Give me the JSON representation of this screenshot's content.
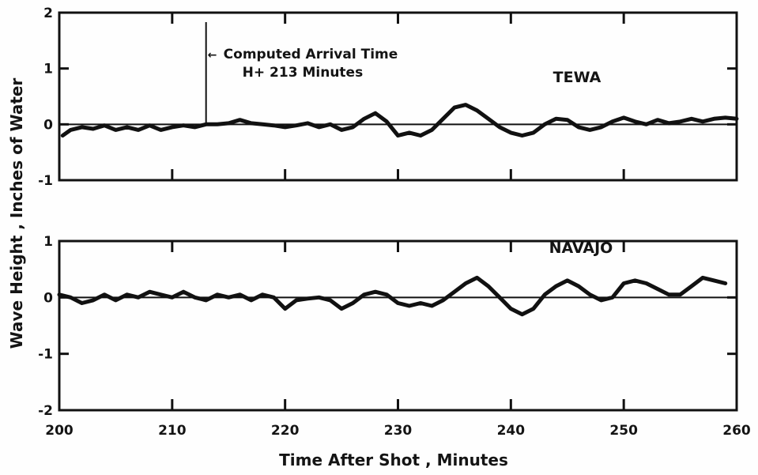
{
  "chart_data": {
    "type": "line",
    "xlabel": "Time After Shot , Minutes",
    "ylabel": "Wave Height ,  Inches of Water",
    "xlim": [
      200,
      260
    ],
    "x_ticks": [
      200,
      210,
      220,
      230,
      240,
      250,
      260
    ],
    "panels": [
      {
        "name": "TEWA",
        "ylim": [
          -1,
          2
        ],
        "y_ticks": [
          -1,
          0,
          1,
          2
        ],
        "annotation": {
          "x": 213,
          "line1": "Computed Arrival Time",
          "line2": "H+ 213  Minutes"
        },
        "series": [
          {
            "name": "TEWA",
            "x": [
              200.3,
              201,
              202,
              203,
              204,
              205,
              206,
              207,
              208,
              209,
              210,
              211,
              212,
              213,
              214,
              215,
              216,
              217,
              218,
              219,
              220,
              221,
              222,
              223,
              224,
              225,
              226,
              227,
              228,
              229,
              230,
              231,
              232,
              233,
              234,
              235,
              236,
              237,
              238,
              239,
              240,
              241,
              242,
              243,
              244,
              245,
              246,
              247,
              248,
              249,
              250,
              251,
              252,
              253,
              254,
              255,
              256,
              257,
              258,
              259,
              260
            ],
            "y": [
              -0.2,
              -0.1,
              -0.05,
              -0.08,
              -0.02,
              -0.1,
              -0.05,
              -0.1,
              -0.02,
              -0.1,
              -0.05,
              -0.02,
              -0.05,
              0.0,
              0.0,
              0.02,
              0.08,
              0.02,
              0.0,
              -0.02,
              -0.05,
              -0.02,
              0.02,
              -0.05,
              0.0,
              -0.1,
              -0.05,
              0.1,
              0.2,
              0.05,
              -0.2,
              -0.15,
              -0.2,
              -0.1,
              0.1,
              0.3,
              0.35,
              0.25,
              0.1,
              -0.05,
              -0.15,
              -0.2,
              -0.15,
              0.0,
              0.1,
              0.08,
              -0.05,
              -0.1,
              -0.05,
              0.05,
              0.12,
              0.05,
              0.0,
              0.08,
              0.02,
              0.05,
              0.1,
              0.05,
              0.1,
              0.12,
              0.1
            ]
          }
        ]
      },
      {
        "name": "NAVAJO",
        "ylim": [
          -2,
          1
        ],
        "y_ticks": [
          -2,
          -1,
          0,
          1
        ],
        "series": [
          {
            "name": "NAVAJO",
            "x": [
              200,
              201,
              202,
              203,
              204,
              205,
              206,
              207,
              208,
              209,
              210,
              211,
              212,
              213,
              214,
              215,
              216,
              217,
              218,
              219,
              220,
              221,
              222,
              223,
              224,
              225,
              226,
              227,
              228,
              229,
              230,
              231,
              232,
              233,
              234,
              235,
              236,
              237,
              238,
              239,
              240,
              241,
              242,
              243,
              244,
              245,
              246,
              247,
              248,
              249,
              250,
              251,
              252,
              253,
              254,
              255,
              256,
              257,
              258,
              259
            ],
            "y": [
              0.05,
              0.0,
              -0.1,
              -0.05,
              0.05,
              -0.05,
              0.05,
              0.0,
              0.1,
              0.05,
              0.0,
              0.1,
              0.0,
              -0.05,
              0.05,
              0.0,
              0.05,
              -0.05,
              0.05,
              0.0,
              -0.2,
              -0.05,
              -0.02,
              0.0,
              -0.05,
              -0.2,
              -0.1,
              0.05,
              0.1,
              0.05,
              -0.1,
              -0.15,
              -0.1,
              -0.15,
              -0.05,
              0.1,
              0.25,
              0.35,
              0.2,
              0.0,
              -0.2,
              -0.3,
              -0.2,
              0.05,
              0.2,
              0.3,
              0.2,
              0.05,
              -0.05,
              0.0,
              0.25,
              0.3,
              0.25,
              0.15,
              0.05,
              0.05,
              0.2,
              0.35,
              0.3,
              0.25
            ]
          }
        ]
      }
    ]
  }
}
